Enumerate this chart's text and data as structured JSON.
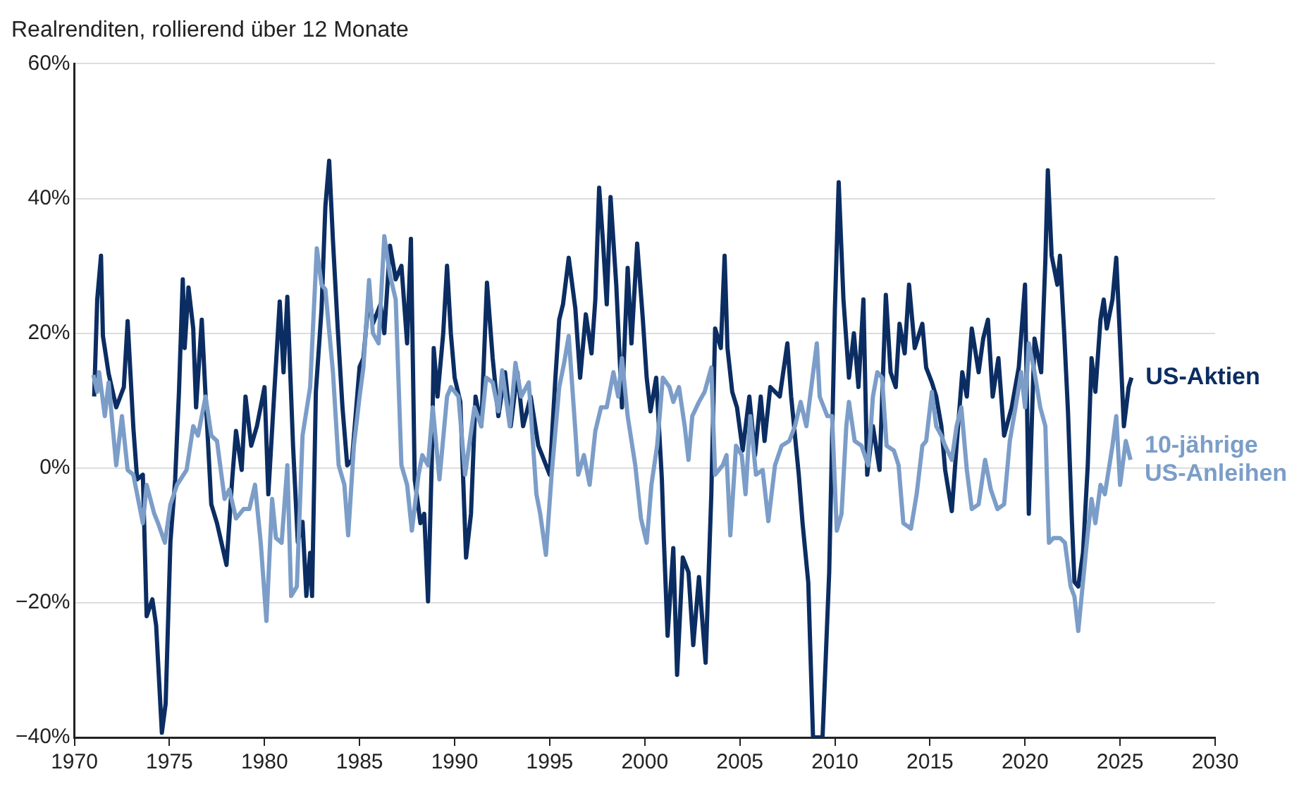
{
  "chart_data": {
    "type": "line",
    "title": "Realrenditen, rollierend über 12 Monate",
    "xlim": [
      1970,
      2030
    ],
    "xticks": [
      1970,
      1975,
      1980,
      1985,
      1990,
      1995,
      2000,
      2005,
      2010,
      2015,
      2020,
      2025,
      2030
    ],
    "ylim": [
      -40,
      60
    ],
    "yticks": [
      {
        "value": -40,
        "label": "−40%"
      },
      {
        "value": -20,
        "label": "−20%"
      },
      {
        "value": 0,
        "label": "0%"
      },
      {
        "value": 20,
        "label": "20%"
      },
      {
        "value": 40,
        "label": "40%"
      },
      {
        "value": 60,
        "label": "60%"
      }
    ],
    "grid": "y",
    "legend": false,
    "marker": "none",
    "line_style": "solid",
    "series": [
      {
        "name": "US-Aktien",
        "color": "#0b2d62",
        "x": [
          1971.04,
          1971.2,
          1971.4,
          1971.5,
          1971.8,
          1972.2,
          1972.6,
          1972.8,
          1973.1,
          1973.3,
          1973.6,
          1973.8,
          1974.1,
          1974.3,
          1974.6,
          1974.8,
          1975.05,
          1975.3,
          1975.5,
          1975.7,
          1975.8,
          1976.0,
          1976.25,
          1976.4,
          1976.7,
          1976.9,
          1977.2,
          1977.5,
          1977.8,
          1978.0,
          1978.3,
          1978.5,
          1978.8,
          1979.0,
          1979.3,
          1979.6,
          1980.0,
          1980.2,
          1980.5,
          1980.8,
          1981.0,
          1981.2,
          1981.5,
          1981.75,
          1982.0,
          1982.2,
          1982.4,
          1982.5,
          1982.7,
          1983.0,
          1983.2,
          1983.4,
          1983.6,
          1983.85,
          1984.1,
          1984.35,
          1984.6,
          1985.0,
          1985.2,
          1985.5,
          1985.7,
          1986.1,
          1986.3,
          1986.6,
          1986.9,
          1987.2,
          1987.5,
          1987.7,
          1987.9,
          1988.2,
          1988.4,
          1988.6,
          1988.8,
          1988.9,
          1989.1,
          1989.4,
          1989.6,
          1989.8,
          1990.0,
          1990.3,
          1990.6,
          1990.86,
          1991.1,
          1991.4,
          1991.7,
          1992.0,
          1992.3,
          1992.65,
          1992.95,
          1993.3,
          1993.6,
          1994.0,
          1994.4,
          1994.6,
          1995.0,
          1995.3,
          1995.5,
          1995.7,
          1996.0,
          1996.35,
          1996.6,
          1996.9,
          1997.2,
          1997.4,
          1997.6,
          1997.8,
          1998.0,
          1998.2,
          1998.5,
          1998.8,
          1999.1,
          1999.3,
          1999.6,
          1999.9,
          2000.1,
          2000.3,
          2000.6,
          2000.9,
          2001.0,
          2001.2,
          2001.5,
          2001.7,
          2002.0,
          2002.3,
          2002.55,
          2002.85,
          2003.2,
          2003.5,
          2003.7,
          2004.0,
          2004.2,
          2004.35,
          2004.6,
          2004.85,
          2005.15,
          2005.5,
          2005.8,
          2006.1,
          2006.3,
          2006.6,
          2007.1,
          2007.5,
          2007.7,
          2008.1,
          2008.3,
          2008.6,
          2008.85,
          2009.35,
          2009.7,
          2010.0,
          2010.2,
          2010.45,
          2010.74,
          2011.0,
          2011.24,
          2011.5,
          2011.7,
          2012.0,
          2012.35,
          2012.68,
          2012.93,
          2013.2,
          2013.4,
          2013.67,
          2013.9,
          2014.2,
          2014.6,
          2014.8,
          2015.1,
          2015.33,
          2015.6,
          2015.8,
          2016.15,
          2016.4,
          2016.7,
          2016.94,
          2017.2,
          2017.56,
          2017.8,
          2018.05,
          2018.3,
          2018.6,
          2018.9,
          2019.3,
          2019.67,
          2020.0,
          2020.2,
          2020.5,
          2020.85,
          2021.07,
          2021.2,
          2021.4,
          2021.7,
          2021.84,
          2022.06,
          2022.26,
          2022.46,
          2022.6,
          2022.8,
          2023.05,
          2023.3,
          2023.5,
          2023.7,
          2023.97,
          2024.14,
          2024.3,
          2024.6,
          2024.8,
          2024.97,
          2025.2,
          2025.45,
          2025.6
        ],
        "values": [
          10.6,
          25,
          31.5,
          19.6,
          14,
          9,
          12,
          21.8,
          6,
          -1.7,
          -1,
          -22,
          -19.5,
          -23.4,
          -39.3,
          -35,
          -11,
          -1.7,
          11.3,
          28,
          17.8,
          26.8,
          20.7,
          9,
          22,
          10.6,
          -5.4,
          -8.2,
          -11.9,
          -14.4,
          -1.7,
          5.5,
          -0.3,
          10.6,
          3.3,
          6.2,
          12,
          -3.9,
          10.6,
          24.7,
          14.2,
          25.4,
          3.3,
          -11,
          -8,
          -19,
          -12.6,
          -19,
          11.3,
          23.6,
          38.8,
          45.6,
          33.7,
          20.7,
          9,
          0.4,
          1.2,
          15,
          16.3,
          25.7,
          21.4,
          24.3,
          20,
          33,
          28,
          30,
          18.5,
          34,
          -1.7,
          -8.2,
          -6.8,
          -19.8,
          1.2,
          17.8,
          10.6,
          20,
          30,
          20,
          13.4,
          9.8,
          -13.3,
          -6.8,
          10.6,
          6.2,
          27.5,
          16.3,
          7.7,
          14.2,
          6.2,
          14.2,
          6.2,
          10.6,
          3.3,
          1.9,
          -1,
          13.4,
          22,
          24.3,
          31.2,
          23.6,
          13.4,
          22.8,
          17,
          25,
          41.6,
          33.7,
          24.3,
          40.2,
          27.2,
          9,
          29.7,
          18.5,
          33.3,
          22,
          13.4,
          8.4,
          13.4,
          -1.7,
          -10.4,
          -24.9,
          -11.9,
          -30.7,
          -13.3,
          -15.5,
          -26.3,
          -16.2,
          -28.9,
          -3.9,
          20.7,
          17.8,
          31.5,
          17.8,
          11.3,
          9,
          2.6,
          10.6,
          1.9,
          10.6,
          4,
          12,
          10.6,
          18.5,
          10.6,
          -1,
          -8.2,
          -17,
          -40,
          -40,
          -15.5,
          23.6,
          42.4,
          25,
          13.4,
          20,
          12,
          25,
          -1,
          6.2,
          -0.3,
          25.7,
          14.2,
          12,
          21.4,
          17,
          27.2,
          17.8,
          21.4,
          14.9,
          12.7,
          10.6,
          6.2,
          -0.3,
          -6.4,
          3.3,
          14.2,
          10.6,
          20.7,
          14.2,
          19.2,
          22,
          10.6,
          16.3,
          4.8,
          9,
          14.9,
          27.2,
          -6.8,
          19.2,
          14.2,
          30.8,
          44.2,
          31.5,
          27.2,
          31.5,
          20,
          8.4,
          -7.5,
          -16.9,
          -17.6,
          -12.6,
          0.4,
          16.3,
          11.3,
          22,
          25,
          20.7,
          25,
          31.2,
          20.7,
          6.2,
          12,
          13.4
        ]
      },
      {
        "name": "10-jährige US-Anleihen",
        "color": "#7b9dc8",
        "x": [
          1971.0,
          1971.2,
          1971.3,
          1971.6,
          1971.8,
          1972.2,
          1972.5,
          1972.8,
          1973.1,
          1973.3,
          1973.6,
          1973.8,
          1974.2,
          1974.4,
          1974.76,
          1975.05,
          1975.4,
          1975.9,
          1976.25,
          1976.5,
          1976.9,
          1977.2,
          1977.5,
          1977.9,
          1978.15,
          1978.5,
          1978.9,
          1979.2,
          1979.5,
          1979.8,
          1980.1,
          1980.4,
          1980.6,
          1980.9,
          1981.2,
          1981.4,
          1981.7,
          1982.0,
          1982.4,
          1982.75,
          1983.0,
          1983.2,
          1983.6,
          1983.9,
          1984.2,
          1984.4,
          1984.7,
          1985.0,
          1985.2,
          1985.5,
          1985.7,
          1986.0,
          1986.3,
          1986.6,
          1986.9,
          1987.2,
          1987.5,
          1987.75,
          1988.1,
          1988.3,
          1988.6,
          1988.85,
          1989.2,
          1989.6,
          1989.8,
          1990.2,
          1990.55,
          1991.04,
          1991.4,
          1991.66,
          1992.0,
          1992.3,
          1992.5,
          1992.9,
          1993.2,
          1993.5,
          1993.9,
          1994.3,
          1994.5,
          1994.8,
          1995.1,
          1995.5,
          1995.76,
          1996.0,
          1996.35,
          1996.5,
          1996.8,
          1997.1,
          1997.4,
          1997.7,
          1998.0,
          1998.35,
          1998.6,
          1998.8,
          1999.1,
          1999.5,
          1999.8,
          2000.1,
          2000.35,
          2000.65,
          2000.95,
          2001.3,
          2001.5,
          2001.8,
          2002.1,
          2002.3,
          2002.5,
          2002.85,
          2003.15,
          2003.5,
          2003.7,
          2004.1,
          2004.3,
          2004.5,
          2004.8,
          2005.1,
          2005.3,
          2005.55,
          2005.85,
          2006.2,
          2006.5,
          2006.85,
          2007.2,
          2007.6,
          2007.9,
          2008.2,
          2008.5,
          2009.05,
          2009.2,
          2009.6,
          2009.85,
          2010.1,
          2010.35,
          2010.6,
          2010.74,
          2011.04,
          2011.4,
          2011.75,
          2012.0,
          2012.23,
          2012.48,
          2012.72,
          2013.1,
          2013.35,
          2013.6,
          2014.0,
          2014.3,
          2014.6,
          2014.8,
          2015.1,
          2015.33,
          2015.6,
          2015.8,
          2016.15,
          2016.4,
          2016.65,
          2016.94,
          2017.2,
          2017.56,
          2017.9,
          2018.2,
          2018.55,
          2018.9,
          2019.2,
          2019.5,
          2019.8,
          2020.0,
          2020.2,
          2020.5,
          2020.8,
          2021.07,
          2021.26,
          2021.5,
          2021.84,
          2022.1,
          2022.4,
          2022.6,
          2022.8,
          2023.05,
          2023.3,
          2023.5,
          2023.7,
          2023.97,
          2024.2,
          2024.6,
          2024.8,
          2025.0,
          2025.3,
          2025.55
        ],
        "values": [
          13.8,
          11.3,
          14.2,
          7.7,
          12.7,
          0.4,
          7.7,
          -0.3,
          -1,
          -3.9,
          -8.2,
          -2.5,
          -6.8,
          -8.2,
          -11.1,
          -5.4,
          -2.5,
          -0.3,
          6.2,
          4.8,
          10.6,
          4.8,
          4,
          -4.6,
          -3.2,
          -7.5,
          -6.1,
          -6.1,
          -2.5,
          -11.1,
          -22.7,
          -4.6,
          -10.4,
          -11.1,
          0.4,
          -19,
          -17.6,
          4.8,
          12,
          32.6,
          27.2,
          26.5,
          14.2,
          0.4,
          -2.5,
          -10,
          3.3,
          10.6,
          14.9,
          27.9,
          20,
          18.5,
          34.4,
          28.6,
          25,
          0.4,
          -2.5,
          -9.3,
          -1,
          1.9,
          0.4,
          9,
          -1.7,
          10.6,
          12,
          10.6,
          -1,
          9,
          6.2,
          13.4,
          12.7,
          8.4,
          14.5,
          6.2,
          15.6,
          10.6,
          12.7,
          -3.9,
          -6.8,
          -12.9,
          -1,
          12,
          15.6,
          19.6,
          5.5,
          -1,
          1.9,
          -2.5,
          5.5,
          9,
          9,
          14.2,
          10.6,
          16.3,
          7.7,
          0.4,
          -7.5,
          -11.1,
          -2.5,
          3.3,
          13.4,
          12,
          9.8,
          12,
          6.2,
          1.2,
          7.7,
          9.8,
          11.3,
          14.9,
          -1,
          0.4,
          1.9,
          -10,
          3.3,
          1.9,
          -3.9,
          7.7,
          -1,
          -0.3,
          -7.9,
          0.4,
          3.3,
          4,
          6.2,
          9.8,
          6.2,
          18.5,
          10.6,
          7.7,
          7.7,
          -9.3,
          -6.8,
          6.2,
          9.8,
          4,
          3.3,
          0.4,
          10.6,
          14.2,
          13.4,
          3.3,
          2.6,
          0.4,
          -8.2,
          -9,
          -3.9,
          3.3,
          4,
          11.3,
          6.2,
          4.8,
          3.3,
          1.2,
          6.2,
          9,
          -0.3,
          -6.1,
          -5.4,
          1.2,
          -3.2,
          -6.1,
          -5.4,
          4,
          9,
          14.2,
          9,
          18.5,
          14.2,
          9,
          6.2,
          -11.1,
          -10.4,
          -10.4,
          -11.1,
          -17.6,
          -19.1,
          -24.2,
          -16.9,
          -9.7,
          -4.6,
          -8.2,
          -2.5,
          -3.9,
          3.3,
          7.7,
          -2.5,
          4,
          1.2
        ]
      }
    ]
  }
}
